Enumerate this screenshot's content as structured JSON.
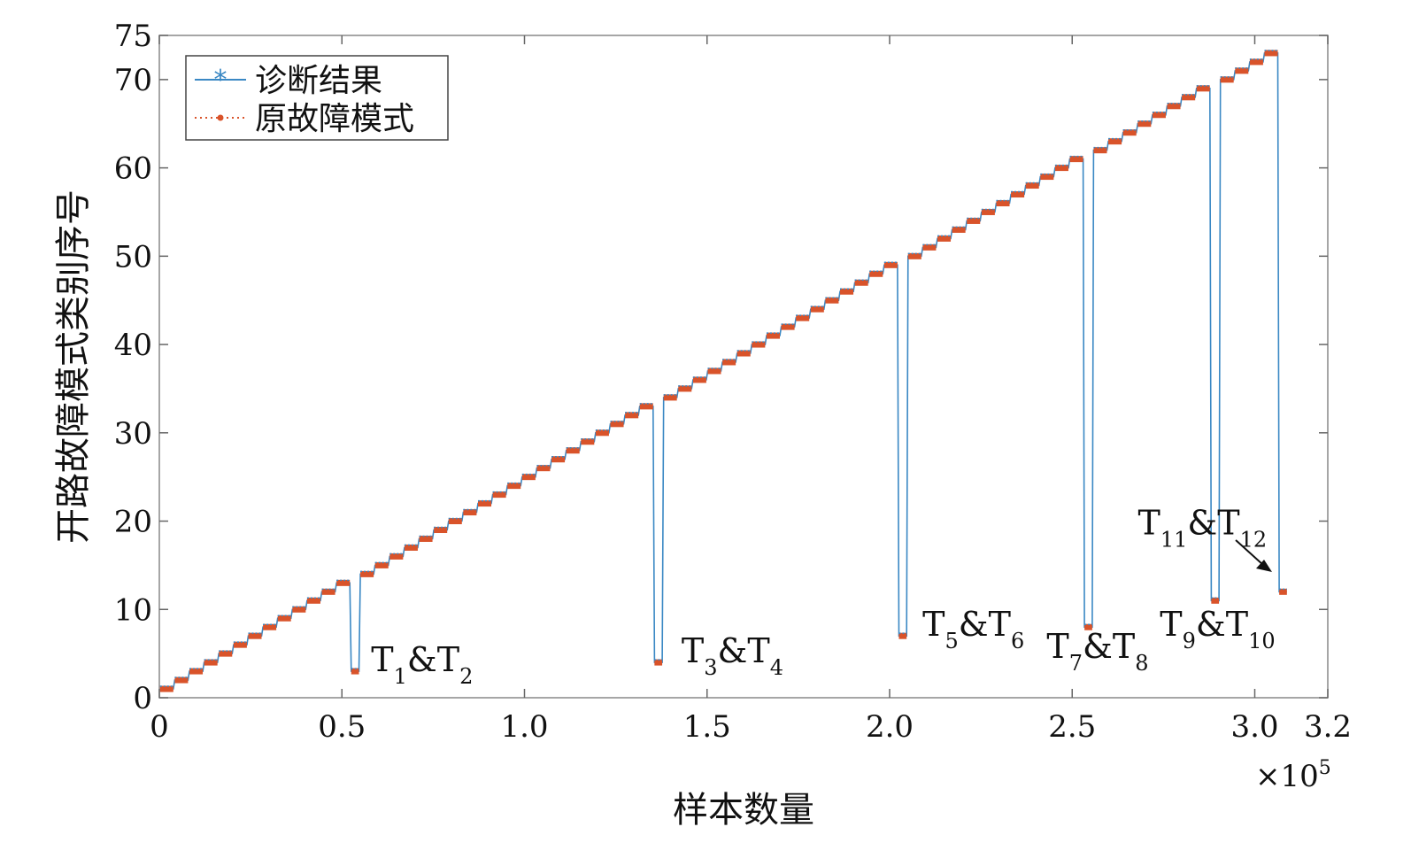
{
  "chart_data": {
    "type": "line",
    "xlabel": "样本数量",
    "ylabel": "开路故障模式类别序号",
    "xlim": [
      0,
      3.2
    ],
    "ylim": [
      0,
      75
    ],
    "x_multiplier": {
      "prefix": "×10",
      "exponent": "5"
    },
    "x_ticks": [
      "0",
      "0.5",
      "1.0",
      "1.5",
      "2.0",
      "2.5",
      "3.0",
      "3.2"
    ],
    "y_ticks": [
      "0",
      "10",
      "20",
      "30",
      "40",
      "50",
      "60",
      "70",
      "75"
    ],
    "x_tick_values": [
      0,
      0.5,
      1.0,
      1.5,
      2.0,
      2.5,
      3.0,
      3.2
    ],
    "y_tick_values": [
      0,
      10,
      20,
      30,
      40,
      50,
      60,
      70,
      75
    ],
    "samples_per_class": 0.042,
    "classes": 73,
    "legend_position": "top-left",
    "series": [
      {
        "name": "诊断结果",
        "color": "#3a88c4",
        "marker": "asterisk"
      },
      {
        "name": "原故障模式",
        "color": "#d9532a",
        "marker": "dot"
      }
    ],
    "swapped_pairs": [
      {
        "class_a": 13,
        "class_b": 3
      },
      {
        "class_a": 33,
        "class_b": 4
      },
      {
        "class_a": 49,
        "class_b": 7
      },
      {
        "class_a": 61,
        "class_b": 8
      },
      {
        "class_a": 69,
        "class_b": 11
      },
      {
        "class_a": 73,
        "class_b": 12
      }
    ],
    "annotations": [
      {
        "a": "T",
        "a_sub": "1",
        "amp": "&",
        "b": "T",
        "b_sub": "2",
        "x": 0.58,
        "y": 3
      },
      {
        "a": "T",
        "a_sub": "3",
        "amp": "&",
        "b": "T",
        "b_sub": "4",
        "x": 1.43,
        "y": 4
      },
      {
        "a": "T",
        "a_sub": "5",
        "amp": "&",
        "b": "T",
        "b_sub": "6",
        "x": 2.09,
        "y": 7
      },
      {
        "a": "T",
        "a_sub": "7",
        "amp": "&",
        "b": "T",
        "b_sub": "8",
        "x": 2.43,
        "y": 4.5
      },
      {
        "a": "T",
        "a_sub": "9",
        "amp": "&",
        "b": "T",
        "b_sub": "10",
        "x": 2.74,
        "y": 7
      },
      {
        "a": "T",
        "a_sub": "11",
        "amp": "&",
        "b": "T",
        "b_sub": "12",
        "x": 2.68,
        "y": 18.5
      }
    ]
  }
}
